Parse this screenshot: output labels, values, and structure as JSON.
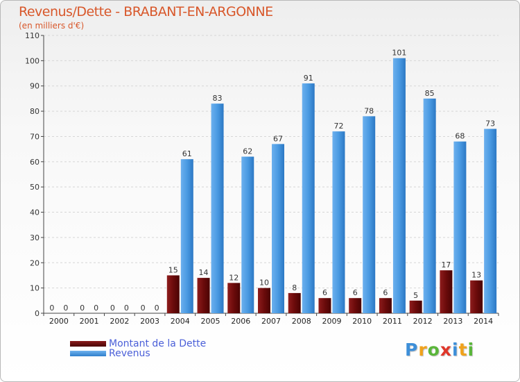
{
  "header": {
    "title": "Revenus/Dette - BRABANT-EN-ARGONNE",
    "subtitle": "(en milliers d'€)"
  },
  "legend": {
    "debt_label": "Montant de la Dette",
    "revenue_label": "Revenus"
  },
  "logo": {
    "text": "Proxiti"
  },
  "colors": {
    "debt": "#6b0b0b",
    "revenue": "#3d8fd9",
    "title": "#d8572a",
    "legend_text": "#4a5fd8"
  },
  "chart_data": {
    "type": "bar",
    "categories": [
      "2000",
      "2001",
      "2002",
      "2003",
      "2004",
      "2005",
      "2006",
      "2007",
      "2008",
      "2009",
      "2010",
      "2011",
      "2012",
      "2013",
      "2014"
    ],
    "series": [
      {
        "name": "Montant de la Dette",
        "values": [
          0,
          0,
          0,
          0,
          15,
          14,
          12,
          10,
          8,
          6,
          6,
          6,
          5,
          17,
          13
        ]
      },
      {
        "name": "Revenus",
        "values": [
          0,
          0,
          0,
          0,
          61,
          83,
          62,
          67,
          91,
          72,
          78,
          101,
          85,
          68,
          73
        ]
      }
    ],
    "ylim": [
      0,
      110
    ],
    "yticks": [
      0,
      10,
      20,
      30,
      40,
      50,
      60,
      70,
      80,
      90,
      100,
      110
    ],
    "grid": true,
    "legend": "bottom-left"
  }
}
